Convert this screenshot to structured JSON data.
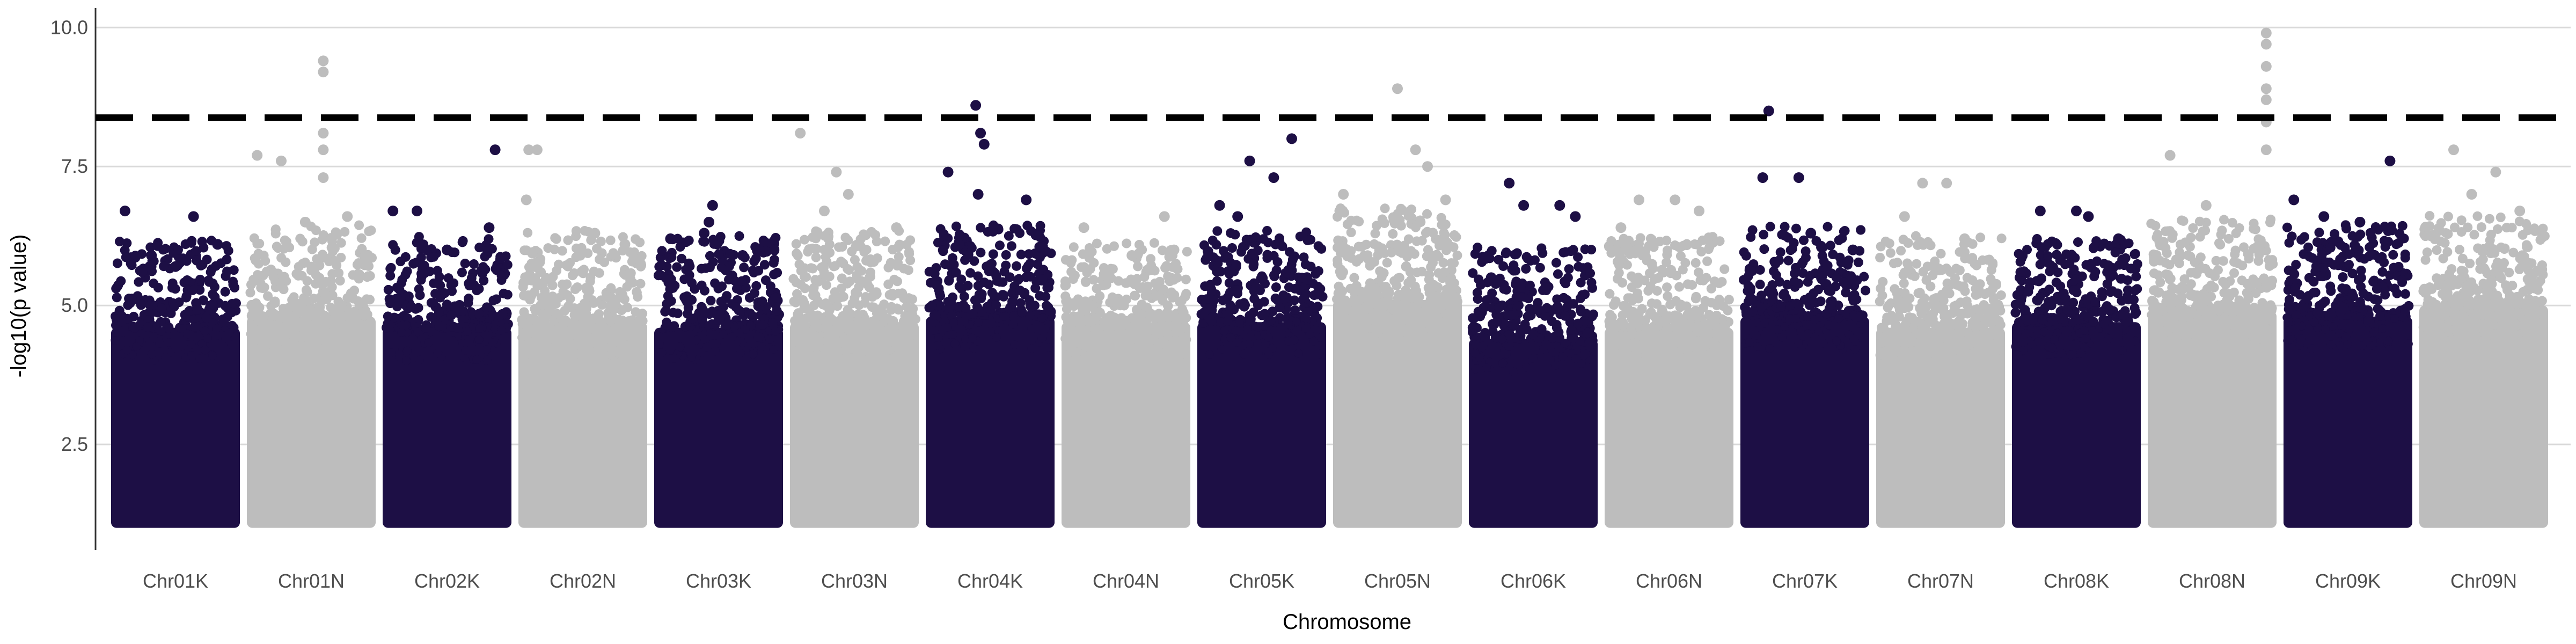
{
  "chart_data": {
    "type": "scatter",
    "subtype": "manhattan",
    "xlabel": "Chromosome",
    "ylabel": "-log10(p value)",
    "ylim": [
      0.6,
      10.35
    ],
    "yticks": [
      2.5,
      5.0,
      7.5,
      10.0
    ],
    "ytick_labels": [
      "2.5",
      "5.0",
      "7.5",
      "10.0"
    ],
    "grid": "horizontal major",
    "legend": "none",
    "threshold": 8.38,
    "colors": {
      "K": "#1d0f45",
      "N": "#bdbdbd"
    },
    "categories": [
      "Chr01K",
      "Chr01N",
      "Chr02K",
      "Chr02N",
      "Chr03K",
      "Chr03N",
      "Chr04K",
      "Chr04N",
      "Chr05K",
      "Chr05N",
      "Chr06K",
      "Chr06N",
      "Chr07K",
      "Chr07N",
      "Chr08K",
      "Chr08N",
      "Chr09K",
      "Chr09N"
    ],
    "series": [
      {
        "chromosome": "Chr01K",
        "group": "K",
        "bulk_top": 4.6,
        "max": 6.7,
        "peaks": [
          [
            0.08,
            6.7
          ],
          [
            0.65,
            6.6
          ],
          [
            0.85,
            6.1
          ],
          [
            0.3,
            5.9
          ],
          [
            0.5,
            5.7
          ]
        ]
      },
      {
        "chromosome": "Chr01N",
        "group": "N",
        "bulk_top": 4.8,
        "max": 9.4,
        "peaks": [
          [
            0.6,
            9.4
          ],
          [
            0.6,
            9.2
          ],
          [
            0.6,
            8.1
          ],
          [
            0.6,
            7.8
          ],
          [
            0.05,
            7.7
          ],
          [
            0.25,
            7.6
          ],
          [
            0.6,
            7.3
          ],
          [
            0.8,
            6.6
          ],
          [
            0.45,
            6.5
          ]
        ]
      },
      {
        "chromosome": "Chr02K",
        "group": "K",
        "bulk_top": 4.6,
        "max": 7.8,
        "peaks": [
          [
            0.9,
            7.8
          ],
          [
            0.05,
            6.7
          ],
          [
            0.25,
            6.7
          ],
          [
            0.85,
            6.4
          ],
          [
            0.5,
            6.0
          ]
        ]
      },
      {
        "chromosome": "Chr02N",
        "group": "N",
        "bulk_top": 4.7,
        "max": 7.8,
        "peaks": [
          [
            0.05,
            7.8
          ],
          [
            0.12,
            7.8
          ],
          [
            0.03,
            6.9
          ],
          [
            0.6,
            6.3
          ],
          [
            0.85,
            6.1
          ]
        ]
      },
      {
        "chromosome": "Chr03K",
        "group": "K",
        "bulk_top": 4.6,
        "max": 6.8,
        "peaks": [
          [
            0.45,
            6.8
          ],
          [
            0.42,
            6.5
          ],
          [
            0.38,
            6.3
          ],
          [
            0.1,
            6.2
          ],
          [
            0.7,
            5.9
          ]
        ]
      },
      {
        "chromosome": "Chr03N",
        "group": "N",
        "bulk_top": 4.7,
        "max": 8.1,
        "peaks": [
          [
            0.05,
            8.1
          ],
          [
            0.35,
            7.4
          ],
          [
            0.45,
            7.0
          ],
          [
            0.25,
            6.7
          ],
          [
            0.85,
            6.4
          ]
        ]
      },
      {
        "chromosome": "Chr04K",
        "group": "K",
        "bulk_top": 4.8,
        "max": 8.6,
        "peaks": [
          [
            0.38,
            8.6
          ],
          [
            0.42,
            8.1
          ],
          [
            0.45,
            7.9
          ],
          [
            0.15,
            7.4
          ],
          [
            0.8,
            6.9
          ],
          [
            0.4,
            7.0
          ]
        ]
      },
      {
        "chromosome": "Chr04N",
        "group": "N",
        "bulk_top": 4.7,
        "max": 6.6,
        "peaks": [
          [
            0.82,
            6.6
          ],
          [
            0.15,
            6.4
          ],
          [
            0.55,
            5.9
          ],
          [
            0.9,
            6.0
          ]
        ]
      },
      {
        "chromosome": "Chr05K",
        "group": "K",
        "bulk_top": 4.7,
        "max": 8.0,
        "peaks": [
          [
            0.75,
            8.0
          ],
          [
            0.4,
            7.6
          ],
          [
            0.6,
            7.3
          ],
          [
            0.15,
            6.8
          ],
          [
            0.3,
            6.6
          ]
        ]
      },
      {
        "chromosome": "Chr05N",
        "group": "N",
        "bulk_top": 5.1,
        "max": 8.9,
        "peaks": [
          [
            0.5,
            8.9
          ],
          [
            0.65,
            7.8
          ],
          [
            0.75,
            7.5
          ],
          [
            0.05,
            7.0
          ],
          [
            0.9,
            6.9
          ]
        ]
      },
      {
        "chromosome": "Chr06K",
        "group": "K",
        "bulk_top": 4.4,
        "max": 7.2,
        "peaks": [
          [
            0.3,
            7.2
          ],
          [
            0.42,
            6.8
          ],
          [
            0.72,
            6.8
          ],
          [
            0.85,
            6.6
          ],
          [
            0.15,
            5.5
          ]
        ]
      },
      {
        "chromosome": "Chr06N",
        "group": "N",
        "bulk_top": 4.6,
        "max": 6.9,
        "peaks": [
          [
            0.25,
            6.9
          ],
          [
            0.55,
            6.9
          ],
          [
            0.75,
            6.7
          ],
          [
            0.1,
            6.4
          ]
        ]
      },
      {
        "chromosome": "Chr07K",
        "group": "K",
        "bulk_top": 4.8,
        "max": 8.5,
        "peaks": [
          [
            0.2,
            8.5
          ],
          [
            0.15,
            7.3
          ],
          [
            0.45,
            7.3
          ],
          [
            0.55,
            6.3
          ],
          [
            0.9,
            6.0
          ]
        ]
      },
      {
        "chromosome": "Chr07N",
        "group": "N",
        "bulk_top": 4.6,
        "max": 7.2,
        "peaks": [
          [
            0.35,
            7.2
          ],
          [
            0.55,
            7.2
          ],
          [
            0.2,
            6.6
          ],
          [
            0.7,
            6.2
          ]
        ]
      },
      {
        "chromosome": "Chr08K",
        "group": "K",
        "bulk_top": 4.7,
        "max": 6.7,
        "peaks": [
          [
            0.2,
            6.7
          ],
          [
            0.5,
            6.7
          ],
          [
            0.6,
            6.6
          ],
          [
            0.85,
            6.2
          ]
        ]
      },
      {
        "chromosome": "Chr08N",
        "group": "N",
        "bulk_top": 4.9,
        "max": 9.9,
        "peaks": [
          [
            0.95,
            9.9
          ],
          [
            0.95,
            9.7
          ],
          [
            0.95,
            9.3
          ],
          [
            0.95,
            8.9
          ],
          [
            0.95,
            8.7
          ],
          [
            0.95,
            8.3
          ],
          [
            0.95,
            7.8
          ],
          [
            0.15,
            7.7
          ],
          [
            0.45,
            6.8
          ]
        ]
      },
      {
        "chromosome": "Chr09K",
        "group": "K",
        "bulk_top": 4.8,
        "max": 7.6,
        "peaks": [
          [
            0.85,
            7.6
          ],
          [
            0.05,
            6.9
          ],
          [
            0.3,
            6.6
          ],
          [
            0.6,
            6.5
          ]
        ]
      },
      {
        "chromosome": "Chr09N",
        "group": "N",
        "bulk_top": 5.0,
        "max": 7.8,
        "peaks": [
          [
            0.25,
            7.8
          ],
          [
            0.6,
            7.4
          ],
          [
            0.4,
            7.0
          ],
          [
            0.8,
            6.7
          ]
        ]
      }
    ]
  }
}
